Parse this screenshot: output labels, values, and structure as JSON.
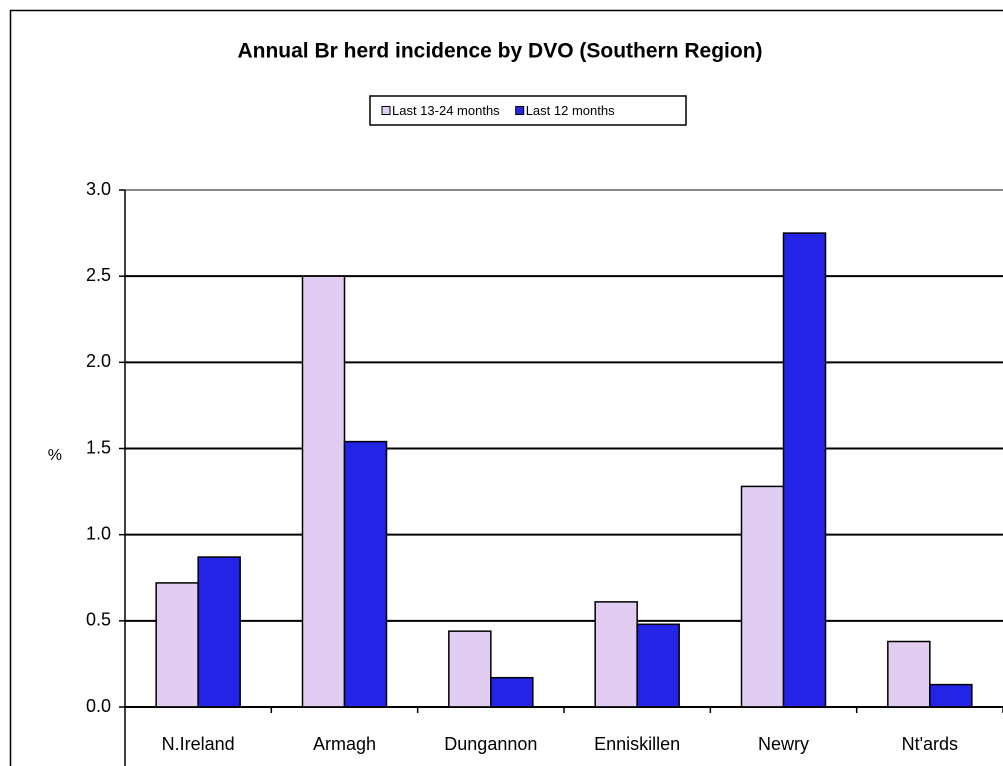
{
  "chart_data": {
    "type": "bar",
    "title": "Annual Br herd incidence by DVO (Southern Region)",
    "y_label": "%",
    "categories": [
      "N.Ireland",
      "Armagh",
      "Dungannon",
      "Enniskillen",
      "Newry",
      "Nt'ards"
    ],
    "series": [
      {
        "name": "Last 13-24 months",
        "color": "#e2cdf2",
        "values": [
          0.72,
          2.5,
          0.44,
          0.61,
          1.28,
          0.38
        ]
      },
      {
        "name": "Last 12 months",
        "color": "#2424e6",
        "values": [
          0.87,
          1.54,
          0.17,
          0.48,
          2.75,
          0.13
        ]
      }
    ],
    "ylim": [
      0,
      3
    ],
    "yticks": [
      {
        "value": 0,
        "label": "0.0"
      },
      {
        "value": 0.5,
        "label": "0.5"
      },
      {
        "value": 1,
        "label": "1.0"
      },
      {
        "value": 1.5,
        "label": "1.5"
      },
      {
        "value": 2,
        "label": "2.0"
      },
      {
        "value": 2.5,
        "label": "2.5"
      },
      {
        "value": 3,
        "label": "3.0"
      }
    ],
    "grid": true,
    "legend": "top"
  }
}
